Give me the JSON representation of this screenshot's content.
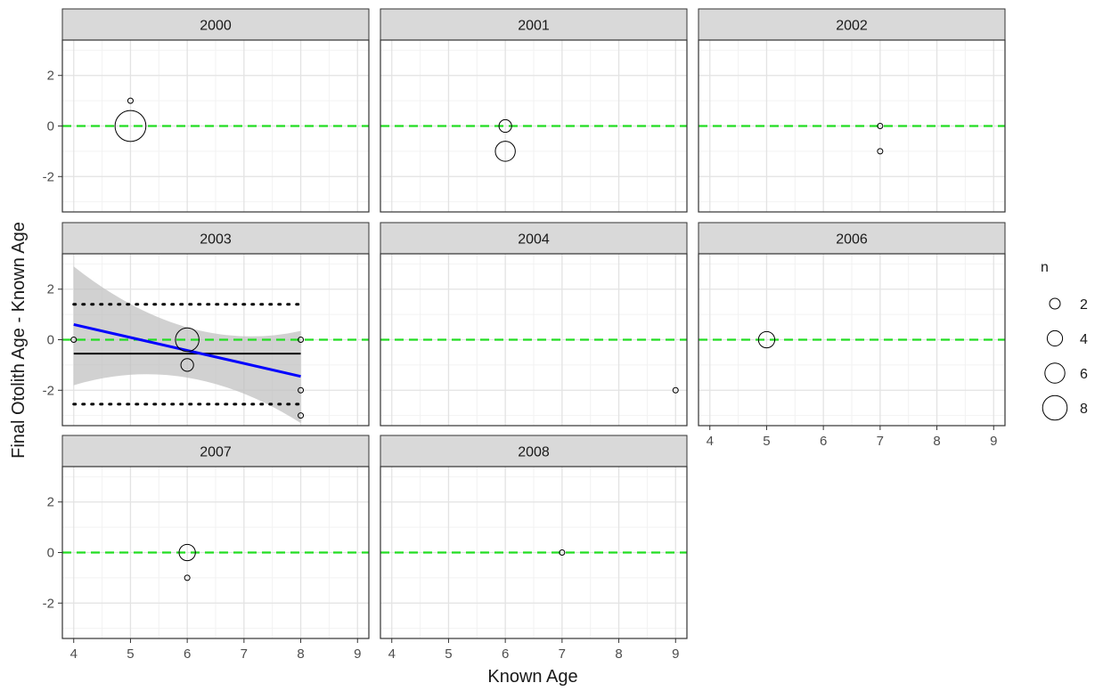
{
  "chart_data": {
    "type": "scatter",
    "xlabel": "Known Age",
    "ylabel": "Final Otolith Age - Known Age",
    "xlim": [
      3.8,
      9.2
    ],
    "ylim": [
      -3.4,
      3.4
    ],
    "x_ticks": [
      4,
      5,
      6,
      7,
      8,
      9
    ],
    "y_ticks": [
      2,
      0,
      -2
    ],
    "y_tick_labels": [
      "2",
      "0",
      "-2"
    ],
    "grid": true,
    "reference_line": {
      "y": 0,
      "style": "dashed",
      "color": "#22dd22"
    },
    "legend": {
      "title": "n",
      "placement": "right",
      "entries": [
        {
          "label": "2",
          "value": 2
        },
        {
          "label": "4",
          "value": 4
        },
        {
          "label": "6",
          "value": 6
        },
        {
          "label": "8",
          "value": 8
        }
      ]
    },
    "panels": [
      {
        "label": "2000",
        "points": [
          {
            "x": 5,
            "y": 1,
            "n": 1
          },
          {
            "x": 5,
            "y": 0,
            "n": 8
          }
        ]
      },
      {
        "label": "2001",
        "points": [
          {
            "x": 6,
            "y": 0,
            "n": 3
          },
          {
            "x": 6,
            "y": -1,
            "n": 5
          }
        ]
      },
      {
        "label": "2002",
        "points": [
          {
            "x": 7,
            "y": 0,
            "n": 1
          },
          {
            "x": 7,
            "y": -1,
            "n": 1
          }
        ]
      },
      {
        "label": "2003",
        "points": [
          {
            "x": 4,
            "y": 0,
            "n": 1
          },
          {
            "x": 6,
            "y": 0,
            "n": 6
          },
          {
            "x": 6,
            "y": -1,
            "n": 3
          },
          {
            "x": 8,
            "y": 0,
            "n": 1
          },
          {
            "x": 8,
            "y": -2,
            "n": 1
          },
          {
            "x": 8,
            "y": -3,
            "n": 1
          }
        ],
        "regression": {
          "x": [
            4,
            8
          ],
          "y": [
            0.6,
            -1.45
          ],
          "ci_upper": [
            2.9,
            0.35
          ],
          "ci_lower": [
            -1.8,
            -3.3
          ],
          "color": "#0000ff"
        },
        "mean_line": {
          "x": [
            4,
            8
          ],
          "y": -0.55
        },
        "limit_lines": {
          "x": [
            4,
            8
          ],
          "upper": 1.4,
          "lower": -2.55
        }
      },
      {
        "label": "2004",
        "points": [
          {
            "x": 9,
            "y": -2,
            "n": 1
          }
        ]
      },
      {
        "label": "2006",
        "points": [
          {
            "x": 5,
            "y": 0,
            "n": 4
          }
        ]
      },
      {
        "label": "2007",
        "points": [
          {
            "x": 6,
            "y": 0,
            "n": 4
          },
          {
            "x": 6,
            "y": -1,
            "n": 1
          }
        ]
      },
      {
        "label": "2008",
        "points": [
          {
            "x": 7,
            "y": 0,
            "n": 1
          }
        ]
      }
    ]
  }
}
